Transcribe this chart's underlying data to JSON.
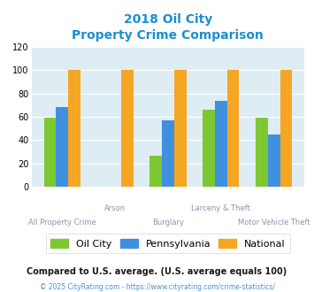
{
  "title_line1": "2018 Oil City",
  "title_line2": "Property Crime Comparison",
  "categories": [
    "All Property Crime",
    "Arson",
    "Burglary",
    "Larceny & Theft",
    "Motor Vehicle Theft"
  ],
  "oil_city": [
    59,
    0,
    27,
    66,
    59
  ],
  "pennsylvania": [
    68,
    0,
    57,
    74,
    45
  ],
  "national": [
    100,
    100,
    100,
    100,
    100
  ],
  "color_oil_city": "#7dc832",
  "color_pennsylvania": "#4090e0",
  "color_national": "#f5a623",
  "ylim": [
    0,
    120
  ],
  "yticks": [
    0,
    20,
    40,
    60,
    80,
    100,
    120
  ],
  "legend_labels": [
    "Oil City",
    "Pennsylvania",
    "National"
  ],
  "footnote1": "Compared to U.S. average. (U.S. average equals 100)",
  "footnote2": "© 2025 CityRating.com - https://www.cityrating.com/crime-statistics/",
  "bg_color": "#deedf3",
  "title_color": "#1a8fd1",
  "xlabel_color": "#9b8faa",
  "footnote1_color": "#1a1a1a",
  "footnote2_color": "#4a90d9",
  "bar_width": 0.23
}
